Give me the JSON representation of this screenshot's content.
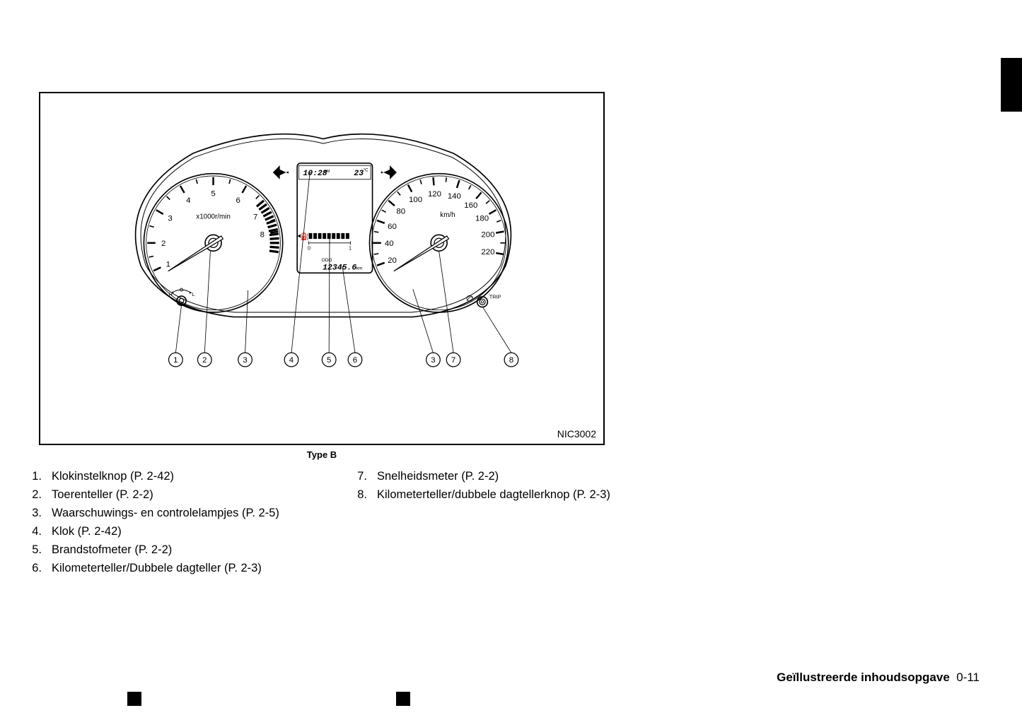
{
  "figure": {
    "code": "NIC3002",
    "caption": "Type B",
    "display": {
      "clock": "10:28",
      "clock_suffix": "AM",
      "temp": "23",
      "temp_unit": "°C",
      "odo_label": "ODO",
      "odo": "12345.6",
      "odo_unit": "km",
      "fuel_scale_min": "0",
      "fuel_scale_max": "1"
    },
    "tach": {
      "unit": "x1000r/min",
      "labels": [
        "1",
        "2",
        "3",
        "4",
        "5",
        "6",
        "7",
        "8"
      ],
      "label_angles_deg": [
        205,
        180,
        150,
        120,
        90,
        60,
        32,
        10
      ],
      "radius": 120,
      "redline_from_deg": 40,
      "redline_to_deg": -10
    },
    "speedo": {
      "unit": "km/h",
      "labels": [
        "20",
        "40",
        "60",
        "80",
        "100",
        "120",
        "140",
        "160",
        "180",
        "200",
        "220"
      ],
      "label_angles_deg": [
        200,
        180,
        160,
        140,
        118,
        95,
        72,
        50,
        30,
        10,
        -10
      ],
      "radius": 120,
      "trip_label": "TRIP"
    },
    "callouts": {
      "labels": [
        "1",
        "2",
        "3",
        "4",
        "5",
        "6",
        "3",
        "7",
        "8"
      ],
      "x_positions": [
        90,
        140,
        210,
        290,
        355,
        400,
        535,
        570,
        670
      ],
      "circle_r": 12
    },
    "colors": {
      "line": "#000000",
      "bg": "#ffffff",
      "redline": "#000000"
    }
  },
  "legend": {
    "col1": [
      {
        "n": "1.",
        "t": "Klokinstelknop (P. 2-42)"
      },
      {
        "n": "2.",
        "t": "Toerenteller (P. 2-2)"
      },
      {
        "n": "3.",
        "t": "Waarschuwings- en controlelampjes (P. 2-5)"
      },
      {
        "n": "4.",
        "t": "Klok (P. 2-42)"
      },
      {
        "n": "5.",
        "t": "Brandstofmeter (P. 2-2)"
      },
      {
        "n": "6.",
        "t": "Kilometerteller/Dubbele dagteller (P. 2-3)"
      }
    ],
    "col2": [
      {
        "n": "7.",
        "t": "Snelheidsmeter (P. 2-2)"
      },
      {
        "n": "8.",
        "t": "Kilometerteller/dubbele dagtellerknop (P. 2-3)"
      }
    ]
  },
  "footer": {
    "section": "Geïllustreerde inhoudsopgave",
    "page": "0-11"
  }
}
